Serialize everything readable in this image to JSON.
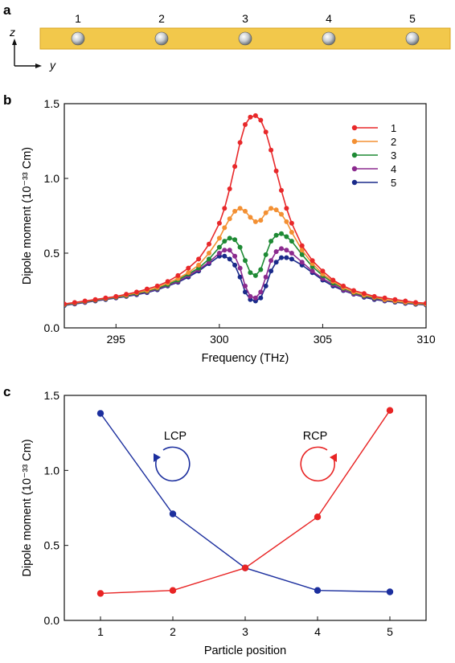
{
  "panels": {
    "a": {
      "label": "a",
      "particles": [
        "1",
        "2",
        "3",
        "4",
        "5"
      ],
      "axis_z": "z",
      "axis_y": "y",
      "colors": {
        "bar": "#f2c84b",
        "bar_edge": "#d9a520",
        "sphere": "#c8ccd0"
      }
    }
  },
  "chart_data": [
    {
      "panel": "b",
      "type": "line",
      "xlabel": "Frequency (THz)",
      "ylabel": "Dipole moment (10⁻³³ Cm)",
      "xlim": [
        292.5,
        310
      ],
      "ylim": [
        0,
        1.5
      ],
      "xticks": [
        295,
        300,
        305,
        310
      ],
      "yticks": [
        0.0,
        0.5,
        1.0,
        1.5
      ],
      "ytick_labels": [
        "0.0",
        "0.5",
        "1.0",
        "1.5"
      ],
      "legend_position": "top-right",
      "x": [
        292.5,
        293.0,
        293.5,
        294.0,
        294.5,
        295.0,
        295.5,
        296.0,
        296.5,
        297.0,
        297.5,
        298.0,
        298.5,
        299.0,
        299.5,
        300.0,
        300.25,
        300.5,
        300.75,
        301.0,
        301.25,
        301.5,
        301.75,
        302.0,
        302.25,
        302.5,
        302.75,
        303.0,
        303.25,
        303.5,
        304.0,
        304.5,
        305.0,
        305.5,
        306.0,
        306.5,
        307.0,
        307.5,
        308.0,
        308.5,
        309.0,
        309.5,
        310.0
      ],
      "series": [
        {
          "name": "1",
          "color": "#e8282a",
          "values": [
            0.16,
            0.17,
            0.18,
            0.19,
            0.2,
            0.21,
            0.225,
            0.24,
            0.26,
            0.28,
            0.31,
            0.35,
            0.4,
            0.46,
            0.56,
            0.7,
            0.8,
            0.93,
            1.08,
            1.24,
            1.36,
            1.41,
            1.42,
            1.39,
            1.31,
            1.19,
            1.05,
            0.92,
            0.8,
            0.7,
            0.55,
            0.45,
            0.38,
            0.32,
            0.28,
            0.25,
            0.23,
            0.21,
            0.2,
            0.19,
            0.18,
            0.17,
            0.165
          ]
        },
        {
          "name": "2",
          "color": "#f39033",
          "values": [
            0.158,
            0.168,
            0.178,
            0.188,
            0.198,
            0.208,
            0.22,
            0.235,
            0.25,
            0.27,
            0.3,
            0.33,
            0.37,
            0.42,
            0.5,
            0.6,
            0.67,
            0.73,
            0.78,
            0.8,
            0.78,
            0.74,
            0.71,
            0.72,
            0.77,
            0.8,
            0.79,
            0.76,
            0.71,
            0.64,
            0.52,
            0.43,
            0.36,
            0.31,
            0.27,
            0.24,
            0.22,
            0.205,
            0.19,
            0.18,
            0.172,
            0.165,
            0.16
          ]
        },
        {
          "name": "3",
          "color": "#1e8a34",
          "values": [
            0.155,
            0.165,
            0.175,
            0.185,
            0.195,
            0.205,
            0.215,
            0.23,
            0.245,
            0.265,
            0.29,
            0.32,
            0.36,
            0.4,
            0.46,
            0.54,
            0.58,
            0.6,
            0.59,
            0.54,
            0.45,
            0.37,
            0.35,
            0.39,
            0.49,
            0.58,
            0.62,
            0.63,
            0.61,
            0.58,
            0.49,
            0.41,
            0.35,
            0.3,
            0.265,
            0.235,
            0.215,
            0.2,
            0.188,
            0.178,
            0.17,
            0.163,
            0.158
          ]
        },
        {
          "name": "4",
          "color": "#8b2a8e",
          "values": [
            0.153,
            0.162,
            0.172,
            0.182,
            0.192,
            0.202,
            0.212,
            0.226,
            0.24,
            0.26,
            0.285,
            0.31,
            0.35,
            0.39,
            0.44,
            0.5,
            0.52,
            0.52,
            0.48,
            0.4,
            0.28,
            0.21,
            0.2,
            0.24,
            0.34,
            0.45,
            0.51,
            0.53,
            0.52,
            0.5,
            0.44,
            0.38,
            0.33,
            0.29,
            0.255,
            0.228,
            0.21,
            0.195,
            0.184,
            0.175,
            0.167,
            0.16,
            0.156
          ]
        },
        {
          "name": "5",
          "color": "#1a2a8a",
          "values": [
            0.15,
            0.16,
            0.17,
            0.18,
            0.19,
            0.2,
            0.21,
            0.222,
            0.236,
            0.255,
            0.28,
            0.305,
            0.34,
            0.38,
            0.43,
            0.48,
            0.48,
            0.46,
            0.42,
            0.34,
            0.24,
            0.19,
            0.18,
            0.2,
            0.28,
            0.38,
            0.44,
            0.47,
            0.47,
            0.46,
            0.42,
            0.37,
            0.32,
            0.28,
            0.25,
            0.225,
            0.205,
            0.19,
            0.18,
            0.172,
            0.164,
            0.158,
            0.153
          ]
        }
      ]
    },
    {
      "panel": "c",
      "type": "line",
      "xlabel": "Particle position",
      "ylabel": "Dipole moment (10⁻³³ Cm)",
      "xlim": [
        0.5,
        5.5
      ],
      "ylim": [
        0,
        1.5
      ],
      "xticks": [
        1,
        2,
        3,
        4,
        5
      ],
      "yticks": [
        0.0,
        0.5,
        1.0,
        1.5
      ],
      "ytick_labels": [
        "0.0",
        "0.5",
        "1.0",
        "1.5"
      ],
      "categories": [
        1,
        2,
        3,
        4,
        5
      ],
      "series": [
        {
          "name": "LCP",
          "color": "#1c2f9e",
          "values": [
            1.38,
            0.71,
            0.35,
            0.2,
            0.19
          ]
        },
        {
          "name": "RCP",
          "color": "#e82424",
          "values": [
            0.18,
            0.2,
            0.35,
            0.69,
            1.4
          ]
        }
      ],
      "annotations": [
        "LCP",
        "RCP"
      ]
    }
  ]
}
